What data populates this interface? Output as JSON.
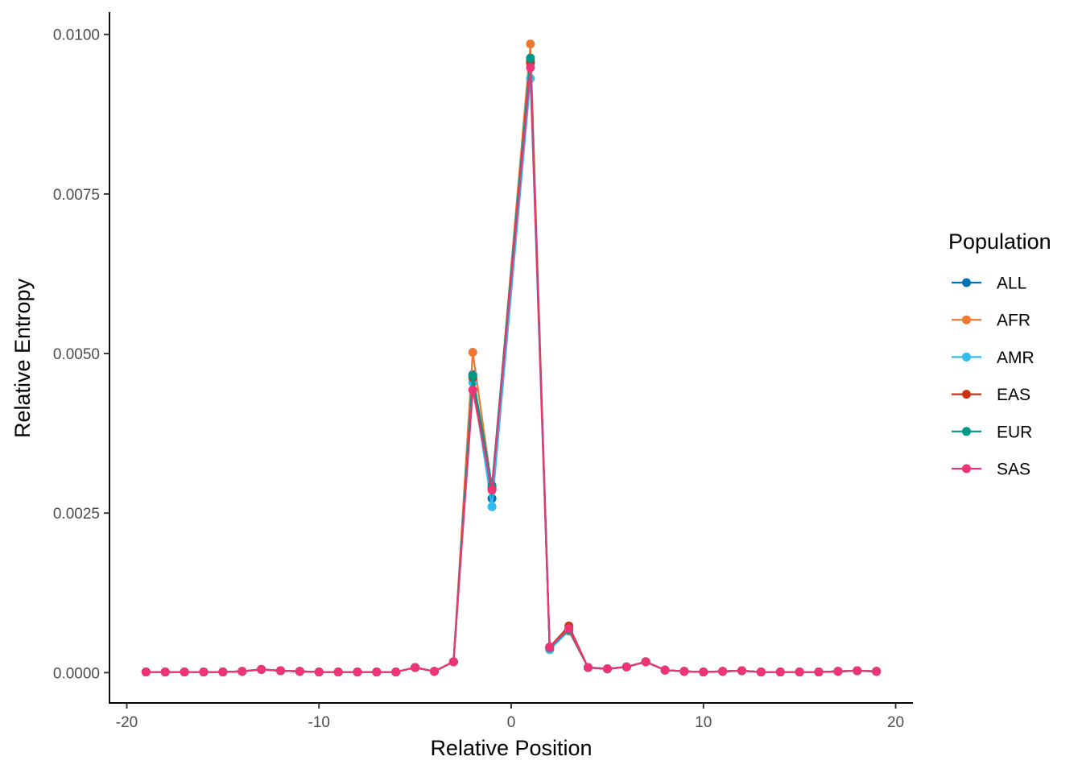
{
  "chart_data": {
    "type": "line",
    "xlabel": "Relative Position",
    "ylabel": "Relative Entropy",
    "xlim": [
      -20.9,
      20.9
    ],
    "ylim": [
      -0.000475,
      0.01035
    ],
    "xticks": [
      -20,
      -10,
      0,
      10,
      20
    ],
    "xtick_labels": [
      "-20",
      "-10",
      "0",
      "10",
      "20"
    ],
    "yticks": [
      0,
      0.0025,
      0.005,
      0.0075,
      0.01
    ],
    "ytick_labels": [
      "0.0000",
      "0.0025",
      "0.0050",
      "0.0075",
      "0.0100"
    ],
    "grid": false,
    "legend": {
      "title": "Population",
      "placement": "right"
    },
    "x": [
      -19,
      -18,
      -17,
      -16,
      -15,
      -14,
      -13,
      -12,
      -11,
      -10,
      -9,
      -8,
      -7,
      -6,
      -5,
      -4,
      -3,
      -2,
      -1,
      1,
      2,
      3,
      4,
      5,
      6,
      7,
      8,
      9,
      10,
      11,
      12,
      13,
      14,
      15,
      16,
      17,
      18,
      19
    ],
    "series": [
      {
        "name": "ALL",
        "color": "#0072B2",
        "values": [
          1e-05,
          1e-05,
          1e-05,
          1e-05,
          1e-05,
          2e-05,
          5e-05,
          3e-05,
          2e-05,
          1e-05,
          1e-05,
          1e-05,
          1e-05,
          1e-05,
          8e-05,
          2e-05,
          0.00017,
          0.00467,
          0.00273,
          0.00958,
          0.00037,
          0.00068,
          8e-05,
          6e-05,
          9e-05,
          0.00017,
          4e-05,
          2e-05,
          1e-05,
          2e-05,
          3e-05,
          1e-05,
          1e-05,
          1e-05,
          1e-05,
          2e-05,
          3e-05,
          2e-05
        ]
      },
      {
        "name": "AFR",
        "color": "#EE7733",
        "values": [
          1e-05,
          1e-05,
          1e-05,
          1e-05,
          1e-05,
          2e-05,
          5e-05,
          3e-05,
          2e-05,
          1e-05,
          1e-05,
          1e-05,
          1e-05,
          1e-05,
          8e-05,
          2e-05,
          0.00017,
          0.00502,
          0.00288,
          0.00985,
          0.0004,
          0.00065,
          8e-05,
          6e-05,
          9e-05,
          0.00017,
          4e-05,
          2e-05,
          1e-05,
          2e-05,
          3e-05,
          1e-05,
          1e-05,
          1e-05,
          1e-05,
          2e-05,
          3e-05,
          2e-05
        ]
      },
      {
        "name": "AMR",
        "color": "#33BBEE",
        "values": [
          1e-05,
          1e-05,
          1e-05,
          1e-05,
          1e-05,
          2e-05,
          5e-05,
          3e-05,
          2e-05,
          1e-05,
          1e-05,
          1e-05,
          1e-05,
          1e-05,
          8e-05,
          2e-05,
          0.00017,
          0.00455,
          0.0026,
          0.00931,
          0.00036,
          0.00066,
          8e-05,
          6e-05,
          9e-05,
          0.00017,
          4e-05,
          2e-05,
          1e-05,
          2e-05,
          3e-05,
          1e-05,
          1e-05,
          1e-05,
          1e-05,
          2e-05,
          3e-05,
          2e-05
        ]
      },
      {
        "name": "EAS",
        "color": "#CC3311",
        "values": [
          1e-05,
          1e-05,
          1e-05,
          1e-05,
          1e-05,
          2e-05,
          5e-05,
          3e-05,
          2e-05,
          1e-05,
          1e-05,
          1e-05,
          1e-05,
          1e-05,
          8e-05,
          2e-05,
          0.00017,
          0.00462,
          0.00289,
          0.00955,
          0.0004,
          0.00073,
          8e-05,
          6e-05,
          9e-05,
          0.00017,
          4e-05,
          2e-05,
          1e-05,
          2e-05,
          3e-05,
          1e-05,
          1e-05,
          1e-05,
          1e-05,
          2e-05,
          3e-05,
          2e-05
        ]
      },
      {
        "name": "EUR",
        "color": "#009988",
        "values": [
          1e-05,
          1e-05,
          1e-05,
          1e-05,
          1e-05,
          2e-05,
          5e-05,
          3e-05,
          2e-05,
          1e-05,
          1e-05,
          1e-05,
          1e-05,
          1e-05,
          8e-05,
          2e-05,
          0.00017,
          0.00465,
          0.00293,
          0.00963,
          0.00039,
          0.00067,
          8e-05,
          6e-05,
          9e-05,
          0.00017,
          4e-05,
          2e-05,
          1e-05,
          2e-05,
          3e-05,
          1e-05,
          1e-05,
          1e-05,
          1e-05,
          2e-05,
          3e-05,
          2e-05
        ]
      },
      {
        "name": "SAS",
        "color": "#EE3377",
        "values": [
          1e-05,
          1e-05,
          1e-05,
          1e-05,
          1e-05,
          2e-05,
          5e-05,
          3e-05,
          2e-05,
          1e-05,
          1e-05,
          1e-05,
          1e-05,
          1e-05,
          8e-05,
          2e-05,
          0.00017,
          0.00443,
          0.00286,
          0.00948,
          0.0004,
          0.00069,
          8e-05,
          6e-05,
          9e-05,
          0.00017,
          4e-05,
          2e-05,
          1e-05,
          2e-05,
          3e-05,
          1e-05,
          1e-05,
          1e-05,
          1e-05,
          2e-05,
          3e-05,
          2e-05
        ]
      }
    ]
  }
}
